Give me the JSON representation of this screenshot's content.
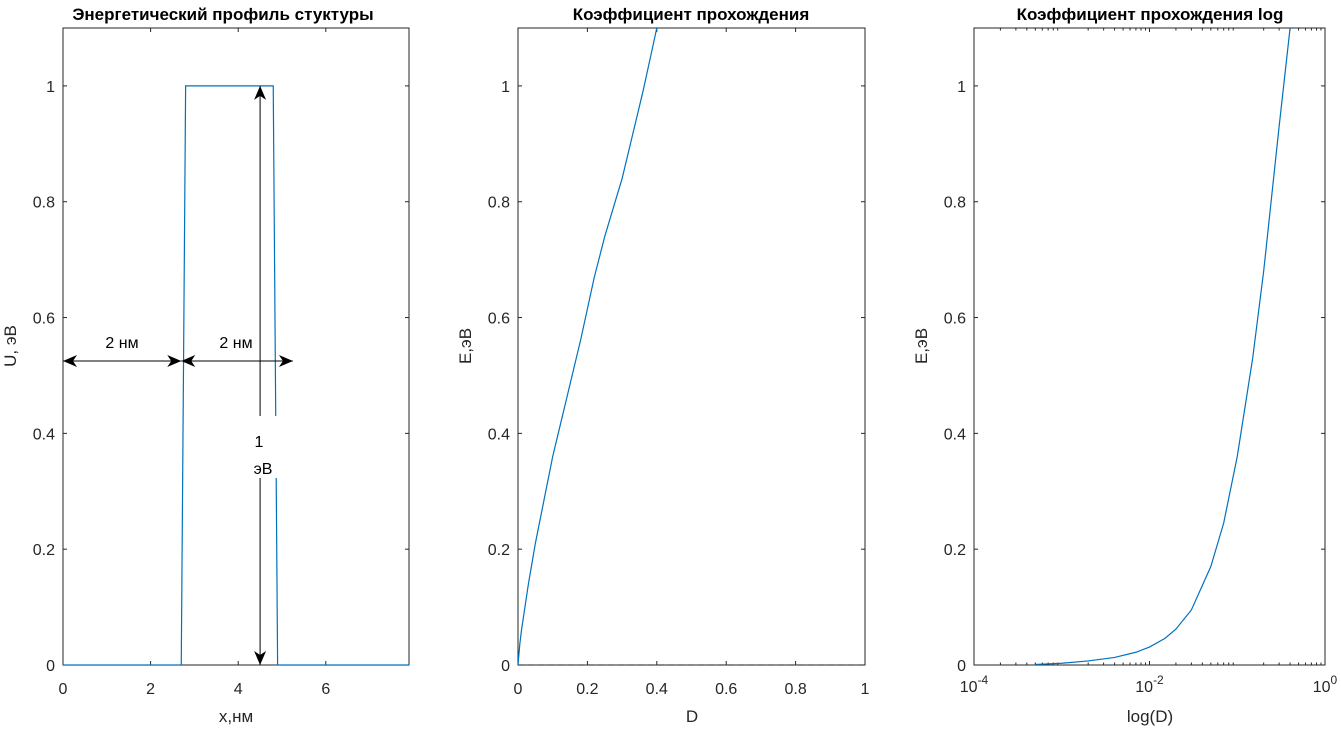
{
  "chart_data": [
    {
      "type": "line",
      "title": "Энергетический профиль стуктуры",
      "xlabel": "x,нм",
      "ylabel": "U, эВ",
      "xlim": [
        0,
        7.9
      ],
      "ylim": [
        0,
        1.1
      ],
      "xticks": [
        0,
        2,
        4,
        6
      ],
      "xtick_labels": [
        "0",
        "2",
        "4",
        "6"
      ],
      "yticks": [
        0,
        0.2,
        0.4,
        0.6,
        0.8,
        1
      ],
      "ytick_labels": [
        "0",
        "0.2",
        "0.4",
        "0.6",
        "0.8",
        "1"
      ],
      "color": "#0072BD",
      "series": [
        {
          "x": [
            0,
            2.7,
            2.8,
            4.8,
            4.9,
            7.9
          ],
          "y": [
            0,
            0,
            1,
            1,
            0,
            0
          ]
        }
      ],
      "annotations": {
        "width_left_label": "2 нм",
        "width_right_label": "2 нм",
        "height_label_line1": "1",
        "height_label_line2": "эВ",
        "arrow_y": 0.525,
        "arrow_left_x": [
          0,
          2.7
        ],
        "arrow_right_x": [
          2.7,
          5.25
        ],
        "vertical_arrow_x": 4.5,
        "vertical_arrow_y": [
          0,
          1
        ]
      }
    },
    {
      "type": "line",
      "title": "Коэффициент прохождения",
      "xlabel": "D",
      "ylabel": "E,эВ",
      "xlim": [
        0,
        1
      ],
      "ylim": [
        0,
        1.1
      ],
      "xticks": [
        0,
        0.2,
        0.4,
        0.6,
        0.8,
        1
      ],
      "xtick_labels": [
        "0",
        "0.2",
        "0.4",
        "0.6",
        "0.8",
        "1"
      ],
      "yticks": [
        0,
        0.2,
        0.4,
        0.6,
        0.8,
        1
      ],
      "ytick_labels": [
        "0",
        "0.2",
        "0.4",
        "0.6",
        "0.8",
        "1"
      ],
      "color": "#0072BD",
      "series": [
        {
          "x": [
            0,
            0.005,
            0.01,
            0.02,
            0.03,
            0.04,
            0.05,
            0.06,
            0.08,
            0.1,
            0.12,
            0.14,
            0.16,
            0.18,
            0.2,
            0.22,
            0.25,
            0.28,
            0.3,
            0.32,
            0.34,
            0.36,
            0.38,
            0.4
          ],
          "y": [
            0,
            0.035,
            0.06,
            0.1,
            0.14,
            0.175,
            0.21,
            0.24,
            0.3,
            0.36,
            0.41,
            0.46,
            0.51,
            0.56,
            0.615,
            0.67,
            0.74,
            0.8,
            0.84,
            0.89,
            0.94,
            0.99,
            1.045,
            1.1
          ]
        }
      ],
      "baseline": 0
    },
    {
      "type": "line",
      "title": "Коэффициент прохождения log",
      "xlabel": "log(D)",
      "ylabel": "E,эВ",
      "xscale": "log",
      "xlim": [
        0.0001,
        1
      ],
      "ylim": [
        0,
        1.1
      ],
      "xticks": [
        0.0001,
        0.01,
        1
      ],
      "xtick_base": [
        "10",
        "10",
        "10"
      ],
      "xtick_exp": [
        "-4",
        "-2",
        "0"
      ],
      "yticks": [
        0,
        0.2,
        0.4,
        0.6,
        0.8,
        1
      ],
      "ytick_labels": [
        "0",
        "0.2",
        "0.4",
        "0.6",
        "0.8",
        "1"
      ],
      "color": "#0072BD",
      "series": [
        {
          "x": [
            0.0005,
            0.001,
            0.002,
            0.004,
            0.007,
            0.01,
            0.015,
            0.02,
            0.03,
            0.05,
            0.07,
            0.1,
            0.15,
            0.2,
            0.3,
            0.4
          ],
          "y": [
            0.001,
            0.003,
            0.007,
            0.013,
            0.022,
            0.031,
            0.046,
            0.062,
            0.095,
            0.17,
            0.245,
            0.36,
            0.53,
            0.68,
            0.93,
            1.1
          ]
        }
      ]
    }
  ]
}
